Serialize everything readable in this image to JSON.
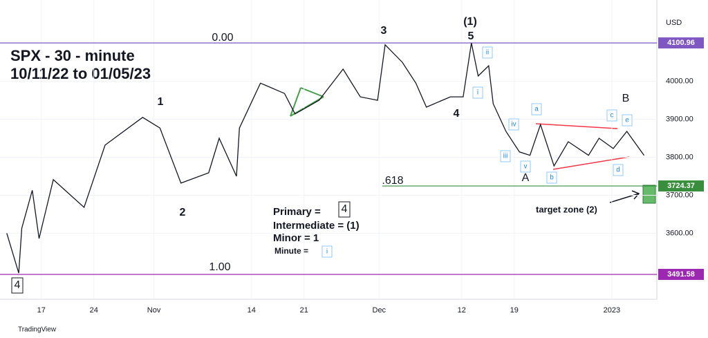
{
  "chart_data": {
    "type": "line",
    "title": "SPX - 30 - minute",
    "subtitle": "10/11/22 to 01/05/23",
    "currency": "USD",
    "source": "TradingView",
    "series": [
      {
        "color": "#131722",
        "x": [
          1.4,
          3,
          3.4,
          4.8,
          5.7,
          7.6,
          11.7,
          14.5,
          19.5,
          21.8,
          24.6,
          28.3,
          29.7,
          32,
          32.4,
          35.2,
          38.4,
          39.8,
          43,
          46.2,
          48.5,
          50.8,
          51.8,
          54.1,
          55.9,
          57.3,
          60.5,
          62.2,
          63.3,
          64.2,
          65.6,
          66.2,
          67.9,
          69.7,
          71.1,
          72.5,
          74.3,
          76.2,
          78.9,
          80.3,
          82.2,
          84,
          86.3
        ],
        "values": [
          3600,
          3495,
          3613,
          3713,
          3586,
          3741,
          3668,
          3832,
          3905,
          3877,
          3732,
          3759,
          3850,
          3750,
          3877,
          3995,
          3968,
          3914,
          3950,
          4032,
          3959,
          3950,
          4096,
          4050,
          3995,
          3932,
          3959,
          3959,
          4101,
          4014,
          4041,
          3941,
          3868,
          3814,
          3805,
          3886,
          3777,
          3841,
          3805,
          3850,
          3823,
          3868,
          3805
        ]
      }
    ],
    "xlim": [
      0.5,
      88
    ],
    "xticks": [
      {
        "value": 6,
        "label": "17"
      },
      {
        "value": 13,
        "label": "24"
      },
      {
        "value": 21,
        "label": "Nov"
      },
      {
        "value": 34,
        "label": "14"
      },
      {
        "value": 41,
        "label": "21"
      },
      {
        "value": 51,
        "label": "Dec"
      },
      {
        "value": 62,
        "label": "12"
      },
      {
        "value": 69,
        "label": "19"
      },
      {
        "value": 82,
        "label": "2023"
      }
    ],
    "ylim": [
      3426,
      4214
    ],
    "yticks": [
      {
        "value": 3600,
        "label": "3600.00"
      },
      {
        "value": 3700,
        "label": "3700.00"
      },
      {
        "value": 3800,
        "label": "3800.00"
      },
      {
        "value": 3900,
        "label": "3900.00"
      },
      {
        "value": 4000,
        "label": "4000.00"
      }
    ],
    "levels": [
      {
        "value": 4100.96,
        "color": "#7e57c2"
      },
      {
        "value": 3724.37,
        "color": "#388e3c"
      },
      {
        "value": 3491.58,
        "color": "#9c27b0"
      }
    ],
    "annotations": [
      "0.00",
      ".618",
      "1.00",
      "1",
      "2",
      "3",
      "(1)",
      "5",
      "4",
      "A",
      "B",
      "ii",
      "i",
      "iv",
      "iii",
      "v",
      "a",
      "b",
      "c",
      "e",
      "d",
      "Primary  =",
      "4",
      "Intermediate = (1)",
      "Minor = 1",
      "Minute =",
      "i",
      "target zone (2)",
      "4"
    ]
  }
}
